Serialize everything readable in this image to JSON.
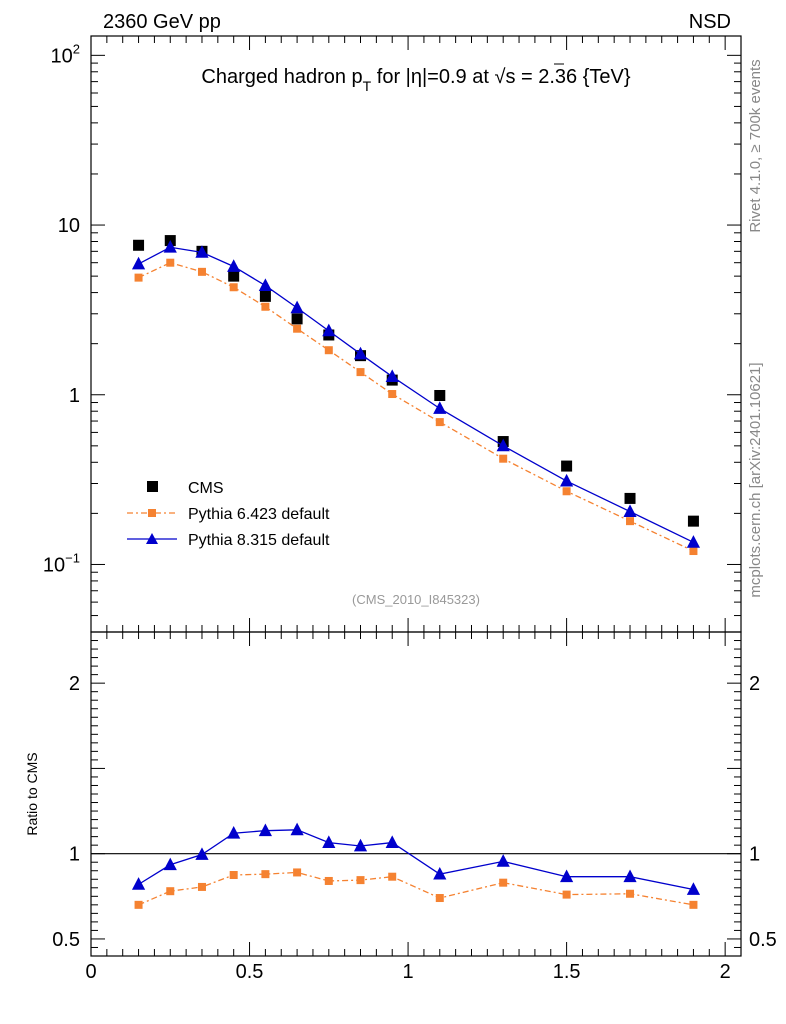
{
  "header": {
    "left": "2360 GeV pp",
    "right": "NSD"
  },
  "side_labels": {
    "events": "Rivet 4.1.0, ≥ 700k events",
    "source": "mcplots.cern.ch [arXiv:2401.10621]"
  },
  "chart_data": {
    "type": "line",
    "title": "Charged hadron p_T for |η|=0.9 at √s = 2.36 {TeV}",
    "title_parts": {
      "pre": "Charged hadron p",
      "sub": "T",
      "mid": " for |η|=0.9 at ",
      "root": "√",
      "post": "s = 2.36 {TeV}"
    },
    "analysis_id": "(CMS_2010_I845323)",
    "xlim": [
      0,
      2.05
    ],
    "xticks": [
      0,
      0.5,
      1,
      1.5,
      2
    ],
    "xtick_labels": [
      "0",
      "0.5",
      "1",
      "1.5",
      "2"
    ],
    "main": {
      "yscale": "log",
      "ylim": [
        0.04,
        130
      ],
      "ytick_labels": [
        {
          "v": 100,
          "base": "10",
          "exp": "2"
        },
        {
          "v": 10,
          "base": "10",
          "exp": ""
        },
        {
          "v": 1,
          "base": "1",
          "exp": ""
        },
        {
          "v": 0.1,
          "base": "10",
          "exp": "−1"
        }
      ]
    },
    "ratio": {
      "ylabel": "Ratio to CMS",
      "ylim": [
        0.4,
        2.3
      ],
      "yticks": [
        0.5,
        1,
        2
      ],
      "ytick_labels": [
        "0.5",
        "1",
        "2"
      ],
      "reference": 1
    },
    "x": [
      0.15,
      0.25,
      0.35,
      0.45,
      0.55,
      0.65,
      0.75,
      0.85,
      0.95,
      1.1,
      1.3,
      1.5,
      1.7,
      1.9
    ],
    "series": [
      {
        "name": "CMS",
        "type": "data",
        "color": "#000000",
        "marker": "square",
        "values": [
          7.6,
          8.1,
          7.0,
          5.0,
          3.8,
          2.8,
          2.25,
          1.7,
          1.22,
          0.99,
          0.53,
          0.38,
          0.245,
          0.18
        ]
      },
      {
        "name": "Pythia 6.423 default",
        "type": "mc",
        "color": "#f58231",
        "marker": "square",
        "dash": "6,3,2,3",
        "values": [
          4.9,
          6.0,
          5.3,
          4.3,
          3.3,
          2.45,
          1.83,
          1.36,
          1.01,
          0.69,
          0.42,
          0.27,
          0.18,
          0.12
        ],
        "ratio": [
          0.7,
          0.78,
          0.805,
          0.875,
          0.88,
          0.89,
          0.84,
          0.845,
          0.865,
          0.74,
          0.83,
          0.76,
          0.765,
          0.7
        ]
      },
      {
        "name": "Pythia 8.315 default",
        "type": "mc",
        "color": "#0000cc",
        "marker": "triangle",
        "dash": "",
        "values": [
          5.9,
          7.4,
          6.9,
          5.7,
          4.4,
          3.25,
          2.38,
          1.74,
          1.28,
          0.83,
          0.5,
          0.31,
          0.205,
          0.135
        ],
        "ratio": [
          0.82,
          0.935,
          0.995,
          1.12,
          1.135,
          1.14,
          1.065,
          1.045,
          1.065,
          0.88,
          0.955,
          0.865,
          0.865,
          0.79
        ]
      }
    ]
  }
}
